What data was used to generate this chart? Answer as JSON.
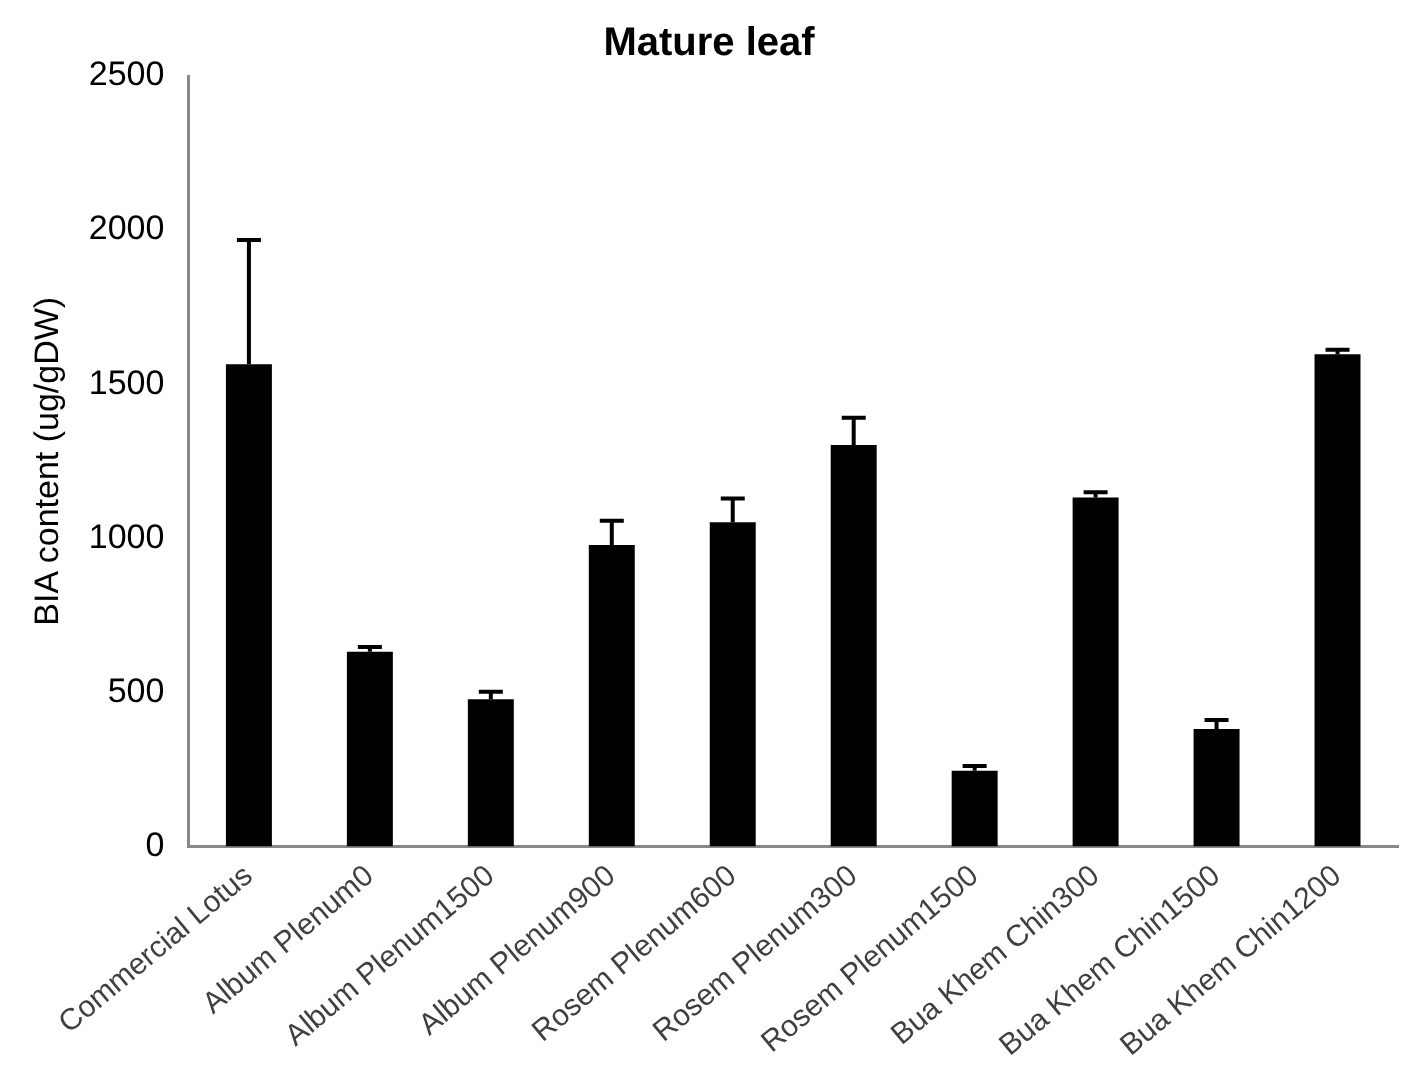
{
  "chart_data": {
    "type": "bar",
    "title": "Mature leaf",
    "ylabel": "BIA content (ug/gDW)",
    "categories": [
      "Commercial Lotus",
      "Album Plenum0",
      "Album Plenum1500",
      "Album Plenum900",
      "Rosem Plenum600",
      "Rosem Plenum300",
      "Rosem Plenum1500",
      "Bua Khem Chin300",
      "Bua Khem Chin1500",
      "Bua Khem Chin1200"
    ],
    "values": [
      1565,
      632,
      478,
      978,
      1052,
      1303,
      246,
      1132,
      381,
      1597
    ],
    "errors": [
      [
        1565,
        1968
      ],
      [
        632,
        647
      ],
      [
        478,
        502
      ],
      [
        978,
        1057
      ],
      [
        1052,
        1129
      ],
      [
        1303,
        1391
      ],
      [
        246,
        261
      ],
      [
        1132,
        1149
      ],
      [
        381,
        410
      ],
      [
        1597,
        1612
      ]
    ],
    "color": "#000000",
    "ylim": [
      0,
      2500
    ],
    "yticks": [
      0,
      500,
      1000,
      1500,
      2000,
      2500
    ],
    "grid": false,
    "legend": false
  }
}
